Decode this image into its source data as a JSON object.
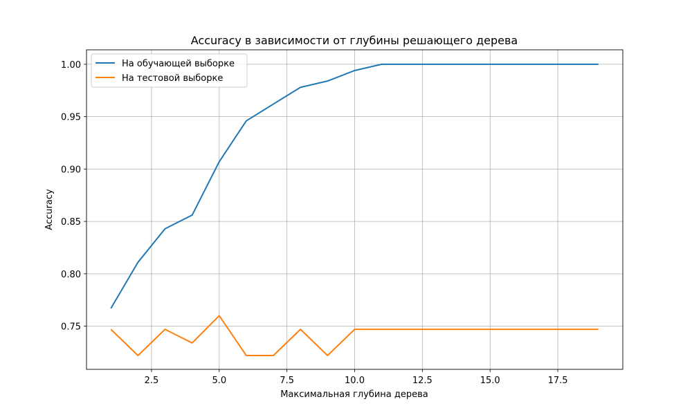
{
  "chart_data": {
    "type": "line",
    "title": "Accuracy в зависимости от глубины решающего дерева",
    "xlabel": "Максимальная глубина дерева",
    "ylabel": "Accuracy",
    "xlim": [
      0.1,
      19.9
    ],
    "ylim": [
      0.7088,
      1.0138
    ],
    "x_ticks": [
      2.5,
      5.0,
      7.5,
      10.0,
      12.5,
      15.0,
      17.5
    ],
    "x_tick_labels": [
      "2.5",
      "5.0",
      "7.5",
      "10.0",
      "12.5",
      "15.0",
      "17.5"
    ],
    "y_ticks": [
      0.75,
      0.8,
      0.85,
      0.9,
      0.95,
      1.0
    ],
    "y_tick_labels": [
      "0.75",
      "0.80",
      "0.85",
      "0.90",
      "0.95",
      "1.00"
    ],
    "grid": true,
    "legend_position": "upper-left",
    "x": [
      1,
      2,
      3,
      4,
      5,
      6,
      7,
      8,
      9,
      10,
      11,
      12,
      13,
      14,
      15,
      16,
      17,
      18,
      19
    ],
    "series": [
      {
        "name": "На обучающей выборке",
        "color": "#1f77b4",
        "values": [
          0.767,
          0.811,
          0.843,
          0.856,
          0.907,
          0.946,
          0.962,
          0.978,
          0.984,
          0.994,
          1.0,
          1.0,
          1.0,
          1.0,
          1.0,
          1.0,
          1.0,
          1.0,
          1.0
        ]
      },
      {
        "name": "На тестовой выборке",
        "color": "#ff7f0e",
        "values": [
          0.747,
          0.722,
          0.747,
          0.734,
          0.76,
          0.722,
          0.722,
          0.747,
          0.722,
          0.747,
          0.747,
          0.747,
          0.747,
          0.747,
          0.747,
          0.747,
          0.747,
          0.747,
          0.747
        ]
      }
    ]
  }
}
